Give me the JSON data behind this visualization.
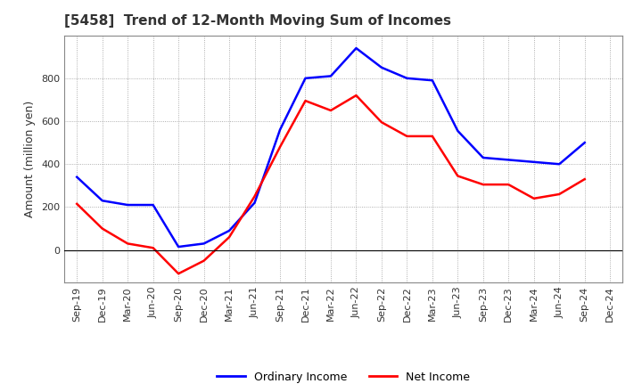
{
  "title": "[5458]  Trend of 12-Month Moving Sum of Incomes",
  "ylabel": "Amount (million yen)",
  "x_labels": [
    "Sep-19",
    "Dec-19",
    "Mar-20",
    "Jun-20",
    "Sep-20",
    "Dec-20",
    "Mar-21",
    "Jun-21",
    "Sep-21",
    "Dec-21",
    "Mar-22",
    "Jun-22",
    "Sep-22",
    "Dec-22",
    "Mar-23",
    "Jun-23",
    "Sep-23",
    "Dec-23",
    "Mar-24",
    "Jun-24",
    "Sep-24",
    "Dec-24"
  ],
  "ordinary_income": [
    340,
    230,
    210,
    210,
    15,
    30,
    90,
    220,
    560,
    800,
    810,
    940,
    850,
    800,
    790,
    555,
    430,
    420,
    410,
    400,
    500,
    null
  ],
  "net_income": [
    215,
    100,
    30,
    10,
    -110,
    -50,
    60,
    250,
    480,
    695,
    650,
    720,
    595,
    530,
    530,
    345,
    305,
    305,
    240,
    260,
    330,
    null
  ],
  "ordinary_color": "#0000FF",
  "net_color": "#FF0000",
  "ylim_min": -150,
  "ylim_max": 1000,
  "yticks": [
    0,
    200,
    400,
    600,
    800
  ],
  "background_color": "#FFFFFF",
  "grid_color": "#999999",
  "title_fontsize": 11,
  "ylabel_fontsize": 9,
  "tick_fontsize": 8,
  "legend_fontsize": 9
}
